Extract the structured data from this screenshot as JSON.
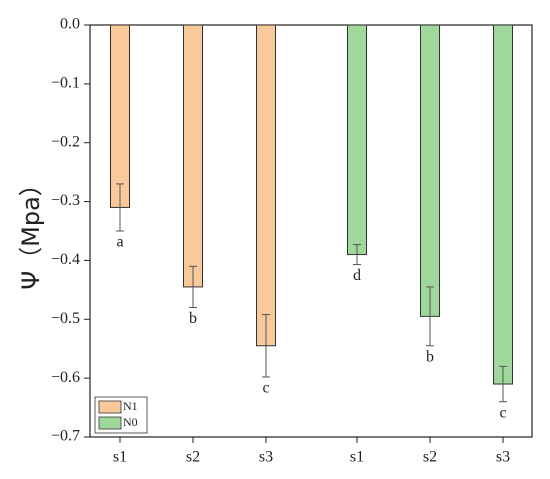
{
  "chart_data": {
    "type": "bar",
    "ylabel": "Ψ（Mpa）",
    "categories": [
      "s1",
      "s2",
      "s3",
      "s1",
      "s2",
      "s3"
    ],
    "series": [
      {
        "name": "N1",
        "color": "#f9c89b",
        "values": [
          -0.31,
          -0.445,
          -0.545,
          null,
          null,
          null
        ],
        "errors": [
          0.04,
          0.035,
          0.053,
          null,
          null,
          null
        ]
      },
      {
        "name": "N0",
        "color": "#a0d89c",
        "values": [
          null,
          null,
          null,
          -0.39,
          -0.495,
          -0.61
        ],
        "errors": [
          null,
          null,
          null,
          0.017,
          0.05,
          0.03
        ]
      }
    ],
    "annotations": [
      "a",
      "b",
      "c",
      "d",
      "b",
      "c"
    ],
    "ylim": [
      -0.7,
      0
    ],
    "yticks": [
      {
        "value": 0,
        "label": "0.0"
      },
      {
        "value": -0.1,
        "label": "−0.1"
      },
      {
        "value": -0.2,
        "label": "−0.2"
      },
      {
        "value": -0.3,
        "label": "−0.3"
      },
      {
        "value": -0.4,
        "label": "−0.4"
      },
      {
        "value": -0.5,
        "label": "−0.5"
      },
      {
        "value": -0.6,
        "label": "−0.6"
      },
      {
        "value": -0.7,
        "label": "−0.7"
      }
    ],
    "legend": "lower left"
  }
}
